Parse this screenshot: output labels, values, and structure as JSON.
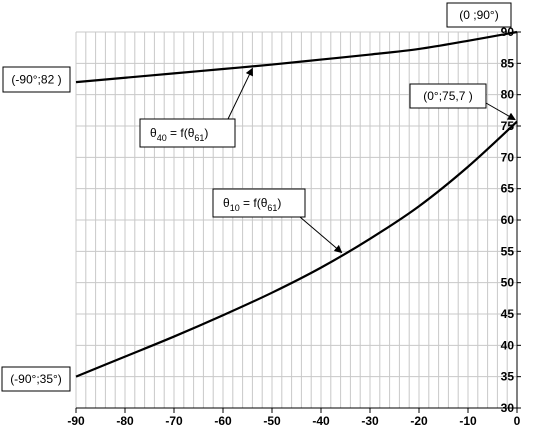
{
  "chart_data": {
    "type": "line",
    "xlim": [
      -90,
      0
    ],
    "ylim": [
      30,
      90
    ],
    "x_ticks": [
      -90,
      -80,
      -70,
      -60,
      -50,
      -40,
      -30,
      -20,
      -10,
      0
    ],
    "y_ticks": [
      30,
      35,
      40,
      45,
      50,
      55,
      60,
      65,
      70,
      75,
      80,
      85,
      90
    ],
    "x_tick_labels": [
      "-90",
      "-80",
      "-70",
      "-60",
      "-50",
      "-40",
      "-30",
      "-20",
      "-10",
      "0"
    ],
    "y_tick_labels": [
      "30",
      "35",
      "40",
      "45",
      "50",
      "55",
      "60",
      "65",
      "70",
      "75",
      "80",
      "85",
      "90"
    ],
    "grid": true,
    "y_axis_side": "right",
    "series": [
      {
        "x": [
          -90,
          -80,
          -70,
          -60,
          -50,
          -40,
          -30,
          -20,
          -10,
          0
        ],
        "y": [
          82,
          82.7,
          83.4,
          84.1,
          84.8,
          85.6,
          86.4,
          87.3,
          88.6,
          90
        ]
      },
      {
        "x": [
          -90,
          -80,
          -70,
          -60,
          -50,
          -40,
          -30,
          -20,
          -10,
          0
        ],
        "y": [
          35,
          38.2,
          41.4,
          44.8,
          48.4,
          52.4,
          57.0,
          62.2,
          68.5,
          75.7
        ]
      }
    ],
    "annotations": [
      {
        "text": "(0 ;90°)",
        "x": 0,
        "y": 90
      },
      {
        "text": "(-90°;82 )",
        "x": -90,
        "y": 82
      },
      {
        "text": "(0°;75,7 )",
        "x": 0,
        "y": 75.7
      },
      {
        "text": "(-90°;35°)",
        "x": -90,
        "y": 35
      },
      {
        "label_main": "θ",
        "label_sub": "40",
        "label_mid": " = f(θ",
        "label_sub2": "61",
        "label_end": ")",
        "x": -54,
        "y": 84.5
      },
      {
        "label_main": "θ",
        "label_sub": "10",
        "label_mid": " = f(θ",
        "label_sub2": "61",
        "label_end": ")",
        "x": -36,
        "y": 54.5
      }
    ]
  }
}
